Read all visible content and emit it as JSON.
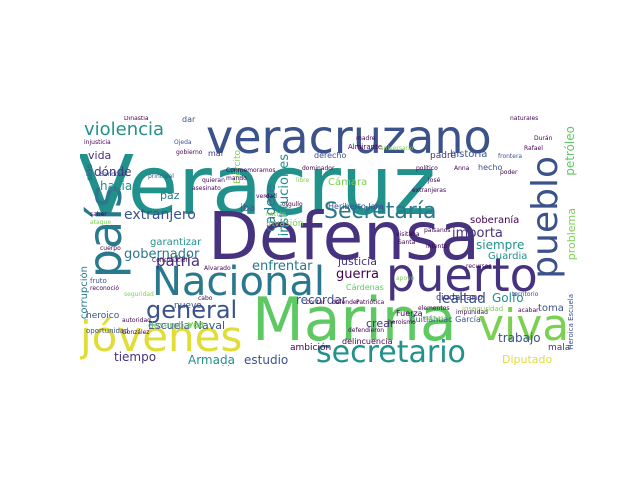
{
  "palette": {
    "teal": "#21918c",
    "purple": "#46327e",
    "green": "#5ec962",
    "yellow": "#e1dd37",
    "blue": "#3b528b",
    "lightgreen": "#7ad151",
    "aqua": "#2a788e",
    "darkpurple": "#440154",
    "seafoam": "#35b779"
  },
  "words": {
    "w1": "Veracruz",
    "w2": "Defensa",
    "w3": "Marina",
    "w4": "veracruzano",
    "w5": "Nacional",
    "w6": "puerto",
    "w7": "jóvenes",
    "w8": "país",
    "w9": "viva",
    "w10": "pueblo",
    "w11": "secretario",
    "w12": "Secretaría",
    "w13": "general",
    "w14": "violencia",
    "w15": "patria",
    "w16": "extranjero",
    "w17": "gobernador",
    "w18": "enfrentar",
    "w19": "guerra",
    "w20": "justicia",
    "w21": "lealtad",
    "w22": "importa",
    "w23": "siempre",
    "w24": "recordar",
    "w25": "trabajo",
    "w26": "Golfo",
    "w27": "Diputado",
    "w28": "Armada",
    "w29": "estudio",
    "w30": "tiempo",
    "w31": "ambición",
    "w32": "crear",
    "w33": "historia",
    "w34": "petróleo",
    "w35": "problema",
    "w36": "soberanía",
    "w37": "Escuela Naval",
    "w38": "dónde",
    "w39": "hacia",
    "w40": "vida",
    "w41": "paz",
    "w42": "garantizar",
    "w43": "corrupción",
    "w44": "desembarco",
    "w45": "heroico",
    "w46": "Cámara",
    "w47": "cadete",
    "w48": "instituciones",
    "w49": "Heriberto Jara",
    "w50": "Cuitláhuac García",
    "w51": "ciudadano",
    "w52": "Guardia",
    "w53": "toma",
    "w54": "mala",
    "w55": "Fuerza",
    "w56": "delincuencia",
    "w57": "padre",
    "w58": "derecho",
    "w59": "Ejército",
    "w60": "invasión",
    "w61": "nuevo",
    "w62": "sido",
    "w63": "iba",
    "w64": "vez",
    "w65": "Cárdenas",
    "w66": "hecho",
    "w67": "Almirante",
    "w68": "inseguridad",
    "w69": "oportunidad",
    "w70": "fruto",
    "w71": "Heroica Escuela",
    "w72": "mal",
    "w73": "dar",
    "w74": "injusticia",
    "w75": "gobierno",
    "w76": "Sandoval",
    "w77": "Rafael",
    "w78": "frontera",
    "w79": "Anna",
    "w80": "político",
    "w81": "naturales",
    "w82": "extranjeras",
    "w83": "defender",
    "w84": "asesinato",
    "w85": "González",
    "w86": "autoridad",
    "w87": "Alvarado",
    "w88": "cuerpo",
    "w89": "principal",
    "w90": "Constitución",
    "w91": "Conmemoramos",
    "w92": "dejaron",
    "w93": "Santa",
    "w94": "visitaba",
    "w95": "paisanos",
    "w96": "apoyo",
    "w97": "intento",
    "w98": "recursos",
    "w99": "impunidad",
    "w100": "elementos",
    "w101": "territorio",
    "w102": "acabar",
    "w103": "Patriótica",
    "w104": "defendieron",
    "w105": "heroísmo",
    "w106": "orgullo",
    "w107": "contar",
    "w108": "José",
    "w109": "madre",
    "w110": "Durán",
    "w111": "poder",
    "w112": "cabo",
    "w113": "Ojeda",
    "w114": "Dinastía",
    "w115": "saber",
    "w116": "ataque",
    "w117": "reconoció",
    "w118": "seguridad",
    "w119": "nación",
    "w120": "verdad",
    "w121": "mando",
    "w122": "quieran",
    "w123": "carnes",
    "w124": "libre",
    "w125": "dominador",
    "w126": "aniversario"
  }
}
